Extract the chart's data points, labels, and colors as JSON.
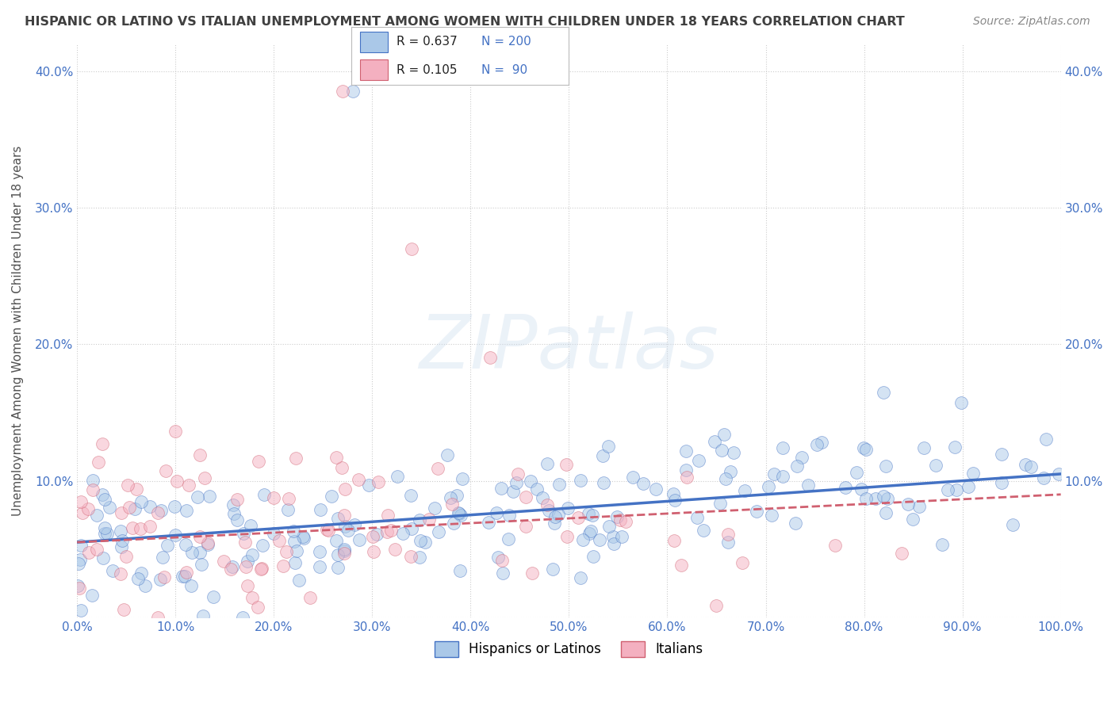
{
  "title": "HISPANIC OR LATINO VS ITALIAN UNEMPLOYMENT AMONG WOMEN WITH CHILDREN UNDER 18 YEARS CORRELATION CHART",
  "source": "Source: ZipAtlas.com",
  "ylabel": "Unemployment Among Women with Children Under 18 years",
  "color_blue": "#aac8e8",
  "color_pink": "#f4b0c0",
  "color_blue_line": "#4472c4",
  "color_pink_line": "#d06070",
  "color_title": "#404040",
  "color_source": "#888888",
  "color_axis_label": "#505050",
  "color_tick_blue": "#4472c4",
  "color_grid": "#cccccc",
  "scatter_alpha": 0.5,
  "seed": 12345,
  "n_blue": 200,
  "n_pink": 90,
  "xmin": 0.0,
  "xmax": 1.0,
  "ymin": 0.0,
  "ymax": 0.42,
  "yticks": [
    0.0,
    0.1,
    0.2,
    0.3,
    0.4
  ],
  "xticks": [
    0.0,
    0.1,
    0.2,
    0.3,
    0.4,
    0.5,
    0.6,
    0.7,
    0.8,
    0.9,
    1.0
  ],
  "blue_line_start": 0.055,
  "blue_line_end": 0.105,
  "pink_line_start": 0.055,
  "pink_line_end": 0.09
}
